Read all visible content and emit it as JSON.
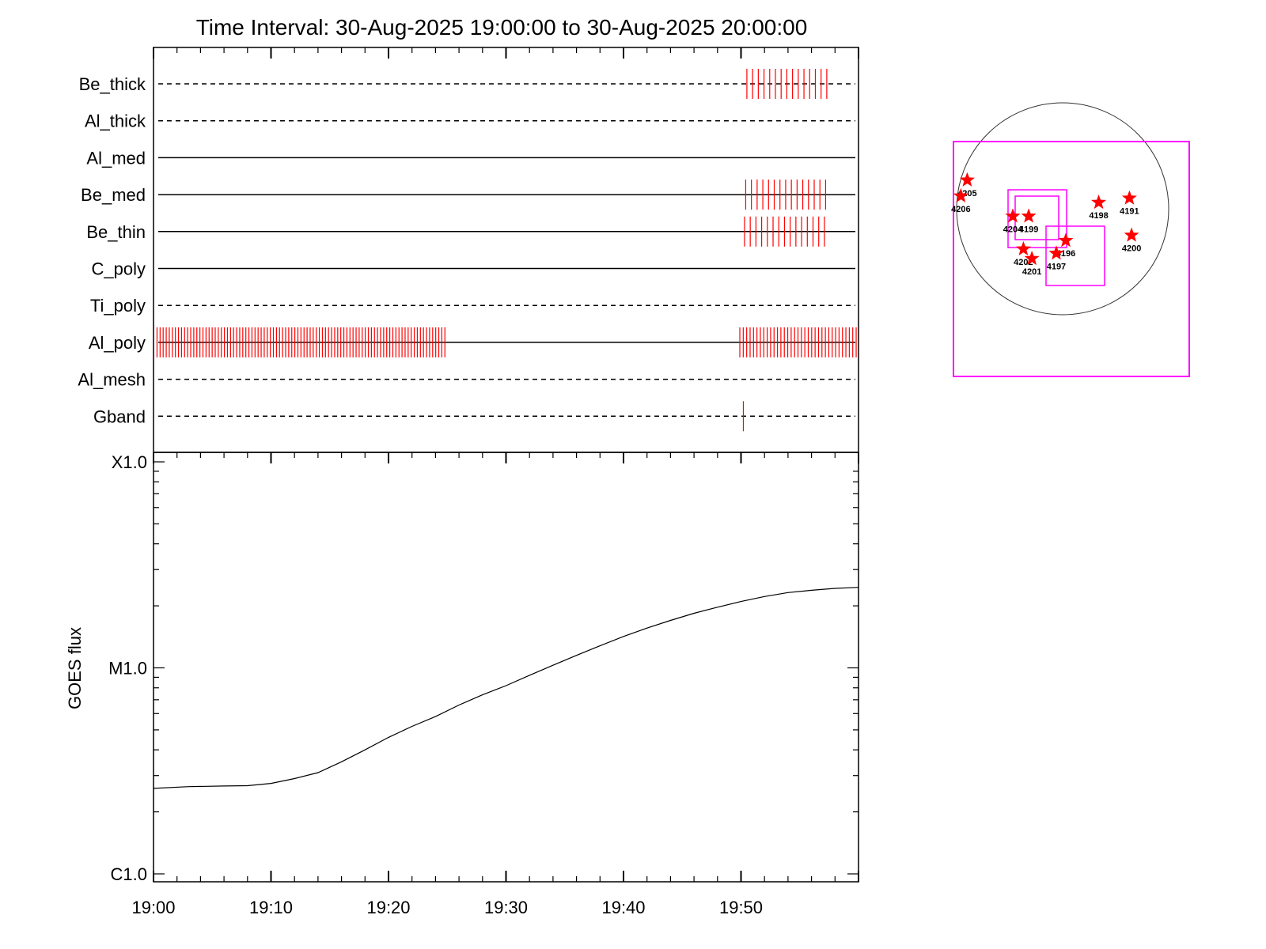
{
  "title": "Time Interval: 30-Aug-2025 19:00:00 to 30-Aug-2025 20:00:00",
  "colors": {
    "axis": "#000000",
    "events": "#ff0000",
    "map_boxes": "#ff00ff",
    "stars": "#ff0000",
    "goes_line": "#000000"
  },
  "chart_data": [
    {
      "type": "timeline",
      "x_range_minutes": [
        0,
        60
      ],
      "channels": [
        {
          "name": "Be_thick",
          "line": "dashed",
          "events": [
            {
              "start": 50.5,
              "end": 57.3,
              "count": 15
            }
          ]
        },
        {
          "name": "Al_thick",
          "line": "dashed",
          "events": []
        },
        {
          "name": "Al_med",
          "line": "solid",
          "events": []
        },
        {
          "name": "Be_med",
          "line": "solid",
          "events": [
            {
              "start": 50.4,
              "end": 57.2,
              "count": 15
            }
          ]
        },
        {
          "name": "Be_thin",
          "line": "solid",
          "events": [
            {
              "start": 50.3,
              "end": 57.1,
              "count": 15
            }
          ]
        },
        {
          "name": "C_poly",
          "line": "solid",
          "events": []
        },
        {
          "name": "Ti_poly",
          "line": "dashed",
          "events": []
        },
        {
          "name": "Al_poly",
          "line": "solid",
          "events": [
            {
              "start": 0.3,
              "end": 24.8,
              "count": 95
            },
            {
              "start": 49.9,
              "end": 59.8,
              "count": 35
            }
          ]
        },
        {
          "name": "Al_mesh",
          "line": "dashed",
          "events": []
        },
        {
          "name": "Gband",
          "line": "dashed",
          "events": [
            {
              "start": 50.2,
              "end": 50.2,
              "count": 1
            }
          ]
        }
      ]
    },
    {
      "type": "line",
      "ylabel": "GOES flux",
      "yscale": "log",
      "ylim": [
        1e-06,
        0.0001
      ],
      "ytick_labels": [
        {
          "value": 0.0001,
          "label": "X1.0"
        },
        {
          "value": 1e-05,
          "label": "M1.0"
        },
        {
          "value": 1e-06,
          "label": "C1.0"
        }
      ],
      "xlim": [
        "19:00",
        "20:00"
      ],
      "xtick_labels": [
        "19:00",
        "19:10",
        "19:20",
        "19:30",
        "19:40",
        "19:50"
      ],
      "series": [
        {
          "x": [
            "19:00",
            "19:03",
            "19:06",
            "19:08",
            "19:10",
            "19:12",
            "19:14",
            "19:16",
            "19:18",
            "19:20",
            "19:22",
            "19:24",
            "19:26",
            "19:28",
            "19:30",
            "19:32",
            "19:34",
            "19:36",
            "19:38",
            "19:40",
            "19:42",
            "19:44",
            "19:46",
            "19:48",
            "19:50",
            "19:52",
            "19:54",
            "19:56",
            "19:58",
            "20:00"
          ],
          "y": [
            2.6e-06,
            2.65e-06,
            2.67e-06,
            2.68e-06,
            2.75e-06,
            2.9e-06,
            3.1e-06,
            3.5e-06,
            4e-06,
            4.6e-06,
            5.2e-06,
            5.8e-06,
            6.6e-06,
            7.4e-06,
            8.2e-06,
            9.2e-06,
            1.03e-05,
            1.15e-05,
            1.28e-05,
            1.42e-05,
            1.56e-05,
            1.7e-05,
            1.84e-05,
            1.97e-05,
            2.1e-05,
            2.22e-05,
            2.32e-05,
            2.38e-05,
            2.43e-05,
            2.46e-05
          ]
        }
      ]
    },
    {
      "type": "map",
      "regions": [
        {
          "label": "4205",
          "x": -0.9,
          "y": 0.27
        },
        {
          "label": "4206",
          "x": -0.96,
          "y": 0.12
        },
        {
          "label": "4204",
          "x": -0.47,
          "y": -0.07
        },
        {
          "label": "4199",
          "x": -0.32,
          "y": -0.07
        },
        {
          "label": "4198",
          "x": 0.34,
          "y": 0.06
        },
        {
          "label": "4191",
          "x": 0.63,
          "y": 0.1
        },
        {
          "label": "4196",
          "x": 0.03,
          "y": -0.3
        },
        {
          "label": "4202",
          "x": -0.37,
          "y": -0.38
        },
        {
          "label": "4201",
          "x": -0.29,
          "y": -0.47
        },
        {
          "label": "4197",
          "x": -0.06,
          "y": -0.42
        },
        {
          "label": "4200",
          "x": 0.65,
          "y": -0.25
        }
      ]
    }
  ]
}
